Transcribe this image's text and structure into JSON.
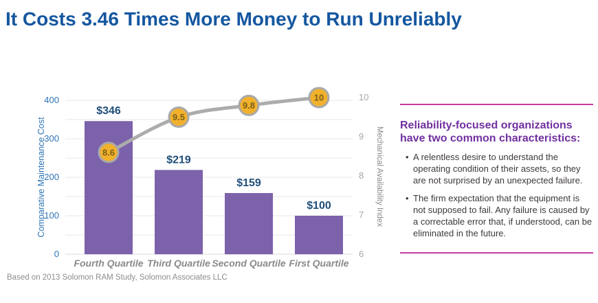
{
  "title": "It Costs 3.46 Times More Money to Run Unreliably",
  "footnote": "Based on 2013 Solomon RAM Study, Solomon Associates LLC",
  "chart_data": {
    "type": "bar",
    "subtype": "pareto-combo-bar-line",
    "categories": [
      "Fourth Quartile",
      "Third Quartile",
      "Second Quartile",
      "First Quartile"
    ],
    "series": [
      {
        "name": "Comparative Maintenance Cost",
        "render": "bar",
        "axis": "left",
        "values": [
          346,
          219,
          159,
          100
        ],
        "labels": [
          "$346",
          "$219",
          "$159",
          "$100"
        ]
      },
      {
        "name": "Mechanical Availability Index",
        "render": "line",
        "axis": "right",
        "values": [
          8.6,
          9.5,
          9.8,
          10
        ],
        "labels": [
          "8.6",
          "9.5",
          "9.8",
          "10"
        ]
      }
    ],
    "left_axis": {
      "label": "Comparative Maintenance Cost",
      "ticks": [
        0,
        100,
        200,
        300,
        400
      ],
      "range": [
        0,
        400
      ],
      "gridline_step": 50
    },
    "right_axis": {
      "label": "Mechanical Availability Index",
      "ticks": [
        6,
        7,
        8,
        9,
        10
      ],
      "range": [
        6,
        10
      ]
    },
    "grid": true,
    "legend": "none"
  },
  "panel": {
    "heading": "Reliability-focused organizations have two common characteristics:",
    "bullets": [
      "A relentless desire to understand the operating condition of their assets, so they are not surprised by an unexpected failure.",
      "The firm expectation that the equipment is not supposed to fail. Any failure is caused by a correctable error that, if understood, can be eliminated in the future."
    ]
  },
  "colors": {
    "title_blue": "#1557A0",
    "bar_purple": "#7C61AB",
    "value_label_navy": "#1F4E79",
    "left_axis_blue": "#2E74B5",
    "right_axis_gray": "#A6A6A6",
    "axis_title_gray": "#8A8A8A",
    "category_gray": "#8A8A8A",
    "line_gray": "#ACACAC",
    "marker_yellow": "#F2B12C",
    "marker_ring_gray": "#A9A9A9",
    "marker_text": "#7A6018",
    "gridline": "#E7E7E7",
    "accent_pink": "#C43A9C",
    "heading_purple": "#7030A0",
    "bullet_text": "#3E3838",
    "footnote_gray": "#8C8C8C"
  }
}
